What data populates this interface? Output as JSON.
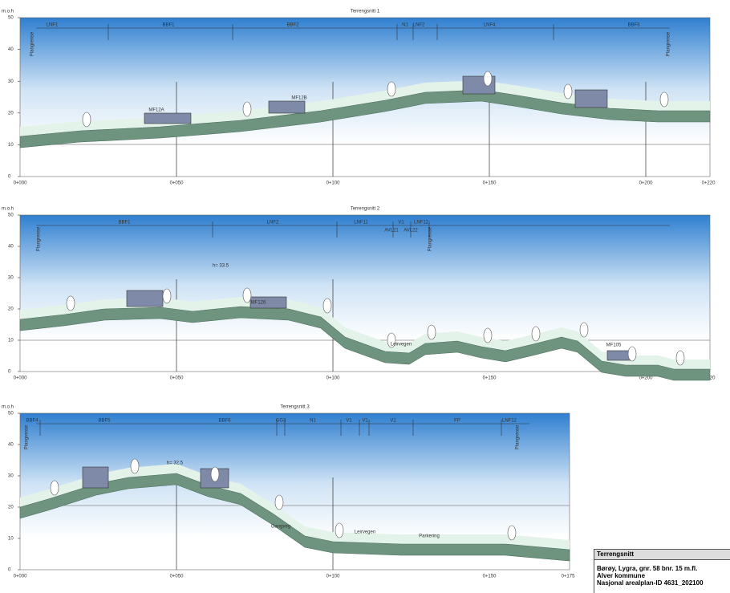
{
  "panels": [
    {
      "title": "Terrengsnitt 1",
      "y_axis_label": "m.o.h",
      "yticks": [
        "0",
        "10",
        "20",
        "30",
        "40",
        "50"
      ],
      "xticks": [
        "0+000",
        "0+050",
        "0+100",
        "0+150",
        "0+200",
        "0+220"
      ],
      "zones": [
        "LNF1",
        "BBF1",
        "BBF2",
        "N1",
        "LNF2",
        "LNF4",
        "BBF3"
      ],
      "annotations": [
        "Plangrense",
        "Plangrense",
        "MF12A",
        "MF12B"
      ]
    },
    {
      "title": "Terrengsnitt 2",
      "y_axis_label": "m.o.h",
      "yticks": [
        "0",
        "10",
        "20",
        "30",
        "40",
        "50"
      ],
      "xticks": [
        "0+000",
        "0+050",
        "0+100",
        "0+150",
        "0+200",
        "0+220"
      ],
      "zones": [
        "BBF1",
        "LNF2",
        "LNF11",
        "V1",
        "LNF12"
      ],
      "annotations": [
        "Plangrense",
        "Plangrense",
        "h= 33.5",
        "MF126",
        "Leirvegen",
        "MF105",
        "AVL21",
        "AVL22"
      ]
    },
    {
      "title": "Terrengsnitt 3",
      "y_axis_label": "m.o.h",
      "yticks": [
        "0",
        "10",
        "20",
        "30",
        "40",
        "50"
      ],
      "xticks": [
        "0+000",
        "0+050",
        "0+100",
        "0+150",
        "0+175"
      ],
      "zones": [
        "BBF4",
        "BBF5",
        "BBF6",
        "GG3",
        "N1",
        "V1",
        "V1",
        "V1",
        "FP",
        "LNF12"
      ],
      "annotations": [
        "Plangrense",
        "Plangrense",
        "h= 32.5",
        "Gangveg",
        "Leirvegen",
        "Parkering"
      ]
    }
  ],
  "title_block": {
    "header": "Terrengsnitt",
    "lines": [
      "Børøy, Lygra, gnr. 58 bnr. 15 m.fl.",
      "Alver kommune",
      "Nasjonal arealplan-ID 4631_202100"
    ]
  }
}
